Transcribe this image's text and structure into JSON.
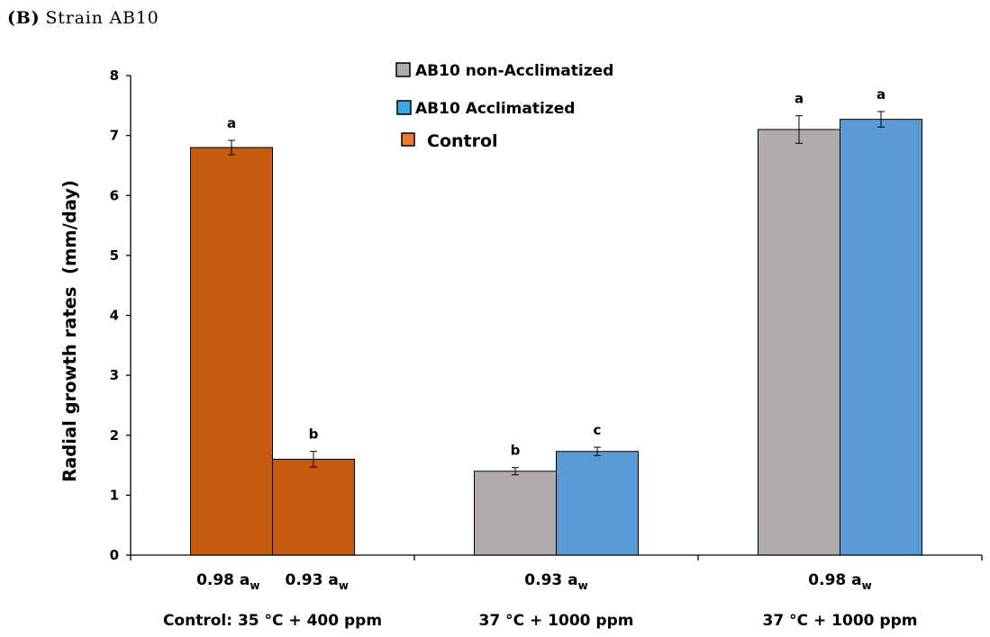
{
  "chart_data": {
    "type": "bar",
    "panel_label": "(B)",
    "title": "Strain AB10",
    "ylabel": "Radial growth rates  (mm/day)",
    "ylim": [
      0,
      8
    ],
    "yticks": [
      0,
      1,
      2,
      3,
      4,
      5,
      6,
      7,
      8
    ],
    "legend": [
      {
        "name": "AB10 non-Acclimatized",
        "swatch_color": "#AFABAB",
        "bar_color": "#AFABAB"
      },
      {
        "name": "AB10 Acclimatized",
        "swatch_color": "#3AA8E4",
        "bar_color": "#5B9BD5"
      },
      {
        "name": "Control",
        "swatch_color": "#EC7A33",
        "bar_color": "#C55A11"
      }
    ],
    "groups": [
      {
        "label": "Control: 35 °C + 400 ppm",
        "tick_labels": [
          {
            "text": "0.98 a",
            "sub": "w"
          },
          {
            "text": "0.93 a",
            "sub": "w"
          }
        ],
        "bars": [
          {
            "series": 2,
            "value": 6.8,
            "error": 0.12,
            "letter": "a"
          },
          {
            "series": 2,
            "value": 1.6,
            "error": 0.13,
            "letter": "b"
          }
        ]
      },
      {
        "label": "37 °C + 1000 ppm",
        "tick_labels": [
          {
            "text": "0.93 a",
            "sub": "w"
          }
        ],
        "bars": [
          {
            "series": 0,
            "value": 1.4,
            "error": 0.06,
            "letter": "b"
          },
          {
            "series": 1,
            "value": 1.73,
            "error": 0.07,
            "letter": "c"
          }
        ]
      },
      {
        "label": "37 °C + 1000 ppm",
        "tick_labels": [
          {
            "text": "0.98 a",
            "sub": "w"
          }
        ],
        "bars": [
          {
            "series": 0,
            "value": 7.1,
            "error": 0.23,
            "letter": "a"
          },
          {
            "series": 1,
            "value": 7.27,
            "error": 0.13,
            "letter": "a"
          }
        ]
      }
    ]
  }
}
